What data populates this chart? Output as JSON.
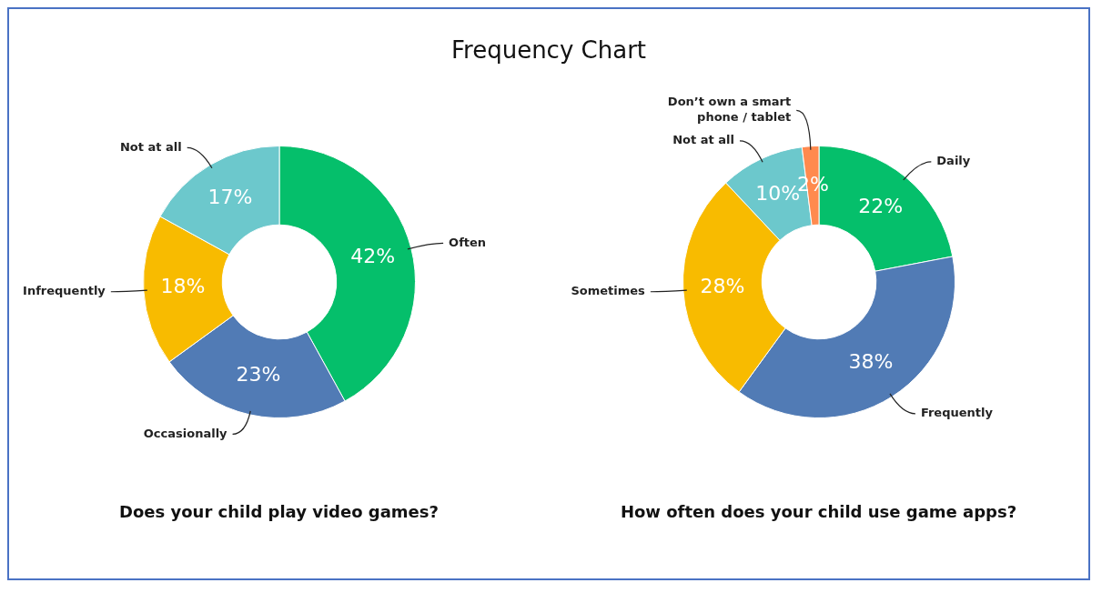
{
  "chart_data": [
    {
      "type": "donut",
      "title": "Frequency Chart",
      "subtitle": "Does your child play video games?",
      "categories": [
        "Often",
        "Occasionally",
        "Infrequently",
        "Not at all"
      ],
      "values": [
        42,
        23,
        18,
        17
      ],
      "colors": [
        "#05bf6b",
        "#517bb5",
        "#f8bb00",
        "#6cc8cc"
      ],
      "value_labels": [
        "42%",
        "23%",
        "18%",
        "17%"
      ],
      "legend": false
    },
    {
      "type": "donut",
      "subtitle": "How often does your child use game apps?",
      "categories": [
        "Daily",
        "Frequently",
        "Sometimes",
        "Not at all",
        "Don’t own a smart phone / tablet"
      ],
      "values": [
        22,
        38,
        28,
        10,
        2
      ],
      "colors": [
        "#05bf6b",
        "#517bb5",
        "#f8bb00",
        "#6cc8cc",
        "#ff8a4e"
      ],
      "value_labels": [
        "22%",
        "38%",
        "28%",
        "10%",
        "2%"
      ],
      "legend": false
    }
  ]
}
